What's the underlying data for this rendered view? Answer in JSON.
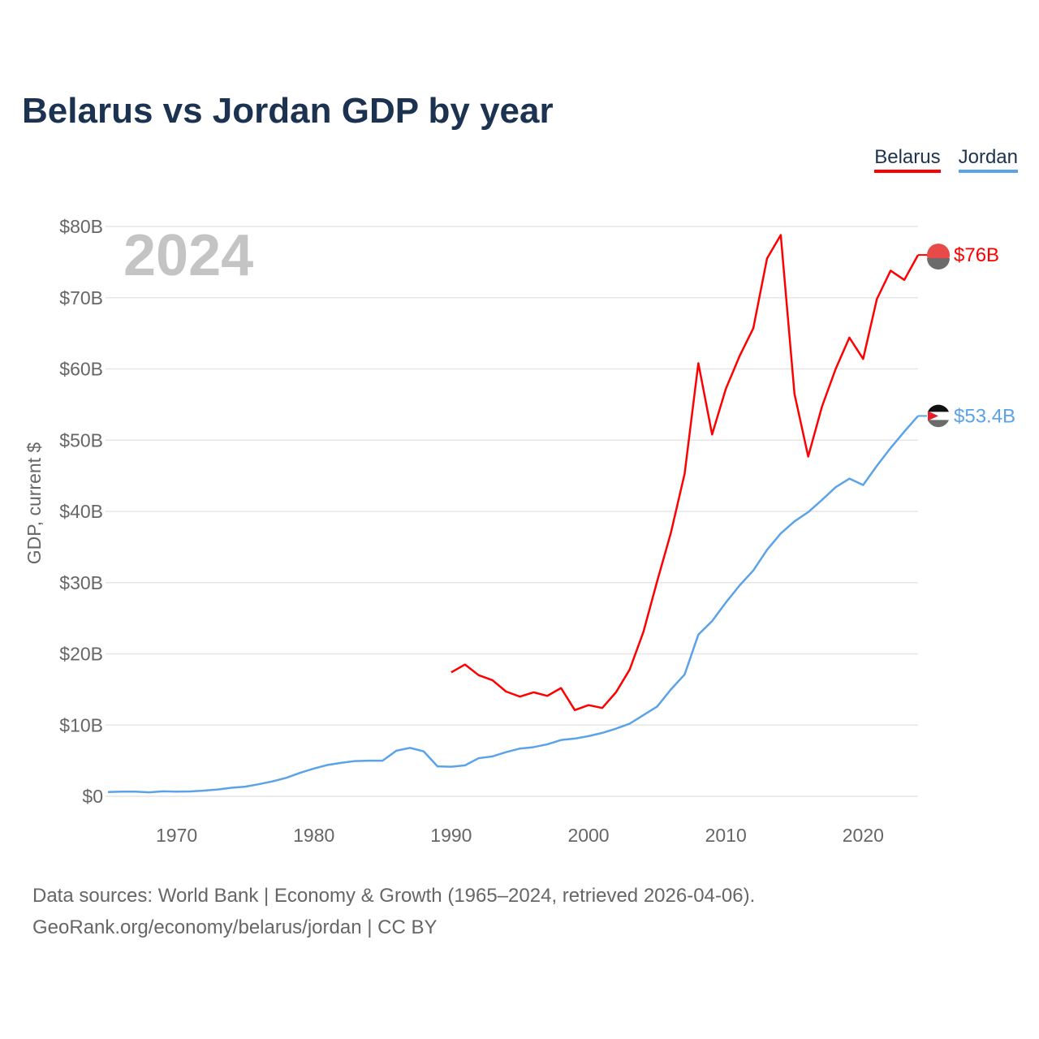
{
  "chart_data": {
    "type": "line",
    "title": "Belarus vs Jordan GDP by year",
    "ylabel": "GDP, current $",
    "xlabel": "",
    "year_label": "2024",
    "xlim": [
      1965,
      2024
    ],
    "ylim": [
      0,
      80
    ],
    "x_ticks": [
      1970,
      1980,
      1990,
      2000,
      2010,
      2020
    ],
    "y_ticks": [
      0,
      10,
      20,
      30,
      40,
      50,
      60,
      70,
      80
    ],
    "y_tick_labels": [
      "$0",
      "$10B",
      "$20B",
      "$30B",
      "$40B",
      "$50B",
      "$60B",
      "$70B",
      "$80B"
    ],
    "grid": true,
    "legend_position": "top-right",
    "series": [
      {
        "name": "Belarus",
        "color": "#ff0000",
        "end_label": "$76B",
        "start": 1990,
        "values": [
          17.4,
          18.5,
          17.0,
          16.3,
          14.7,
          14.0,
          14.6,
          14.1,
          15.2,
          12.1,
          12.8,
          12.4,
          14.6,
          17.8,
          23.1,
          30.2,
          37.0,
          45.3,
          60.8,
          50.8,
          57.2,
          61.8,
          65.7,
          75.5,
          78.8,
          56.5,
          47.7,
          54.7,
          60.0,
          64.4,
          61.4,
          69.8,
          73.8,
          72.5,
          76.0
        ]
      },
      {
        "name": "Jordan",
        "color": "#5ba3e8",
        "end_label": "$53.4B",
        "start": 1965,
        "values": [
          0.6,
          0.65,
          0.65,
          0.55,
          0.7,
          0.65,
          0.68,
          0.8,
          0.95,
          1.2,
          1.35,
          1.7,
          2.1,
          2.6,
          3.3,
          3.9,
          4.4,
          4.7,
          4.95,
          5.0,
          5.0,
          6.4,
          6.8,
          6.3,
          4.2,
          4.15,
          4.35,
          5.35,
          5.6,
          6.2,
          6.7,
          6.9,
          7.3,
          7.9,
          8.1,
          8.45,
          8.9,
          9.5,
          10.2,
          11.4,
          12.6,
          15.0,
          17.1,
          22.7,
          24.6,
          27.2,
          29.6,
          31.7,
          34.6,
          36.9,
          38.6,
          39.9,
          41.6,
          43.4,
          44.6,
          43.7,
          46.4,
          48.9,
          51.2,
          53.4
        ]
      }
    ]
  },
  "footer": {
    "line1": "Data sources: World Bank | Economy & Growth (1965–2024, retrieved 2026-04-06).",
    "line2": "GeoRank.org/economy/belarus/jordan | CC BY"
  }
}
